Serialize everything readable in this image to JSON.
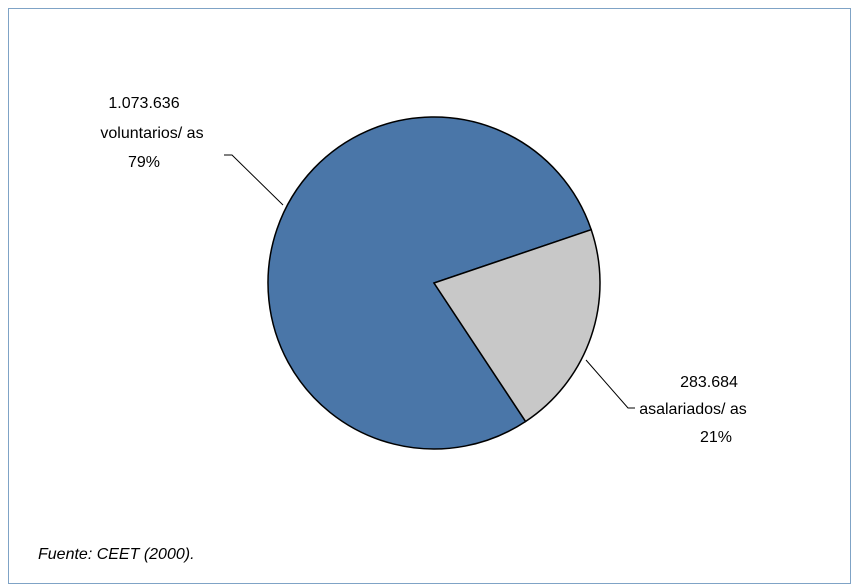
{
  "chart_data": {
    "type": "pie",
    "slices": [
      {
        "value": 1073636,
        "value_label": "1.073.636",
        "name": "voluntarios/ as",
        "percent_label": "79%",
        "color": "#4a76a8"
      },
      {
        "value": 283684,
        "value_label": "283.684",
        "name": "asalariados/ as",
        "percent_label": "21%",
        "color": "#c8c8c8"
      }
    ],
    "legend": "none"
  },
  "source_note": "Fuente: CEET (2000).",
  "colors": {
    "frame_border": "#7fa3c6",
    "slice_outline": "#000000"
  }
}
